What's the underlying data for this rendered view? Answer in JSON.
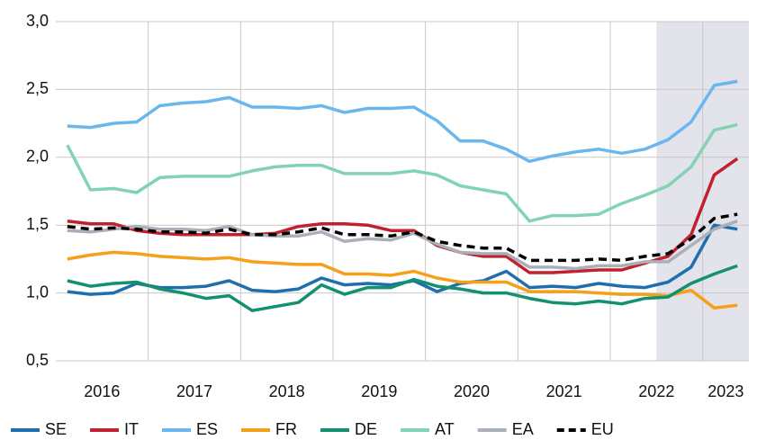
{
  "chart_data": {
    "type": "line",
    "categories": [
      "2016",
      null,
      null,
      null,
      "2017",
      null,
      null,
      null,
      "2018",
      null,
      null,
      null,
      "2019",
      null,
      null,
      null,
      "2020",
      null,
      null,
      null,
      "2021",
      null,
      null,
      null,
      "2022",
      null,
      null,
      null,
      "2023",
      null
    ],
    "ylim": [
      0.5,
      3.0
    ],
    "yticks": [
      {
        "value": 0.5,
        "label": "0,5"
      },
      {
        "value": 1.0,
        "label": "1,0"
      },
      {
        "value": 1.5,
        "label": "1,5"
      },
      {
        "value": 2.0,
        "label": "2,0"
      },
      {
        "value": 2.5,
        "label": "2,5"
      },
      {
        "value": 3.0,
        "label": "3,0"
      }
    ],
    "grid": true,
    "legend": "bottom",
    "series": [
      {
        "name": "SE",
        "color": "#1f6fae",
        "values": [
          1.01,
          0.99,
          1.0,
          1.07,
          1.04,
          1.04,
          1.05,
          1.09,
          1.02,
          1.01,
          1.03,
          1.11,
          1.06,
          1.07,
          1.06,
          1.09,
          1.01,
          1.07,
          1.09,
          1.16,
          1.04,
          1.05,
          1.04,
          1.07,
          1.05,
          1.04,
          1.08,
          1.19,
          1.5,
          1.47
        ]
      },
      {
        "name": "IT",
        "color": "#c0202f",
        "values": [
          1.53,
          1.51,
          1.51,
          1.46,
          1.44,
          1.43,
          1.43,
          1.43,
          1.43,
          1.44,
          1.49,
          1.51,
          1.51,
          1.5,
          1.46,
          1.46,
          1.35,
          1.3,
          1.27,
          1.27,
          1.15,
          1.15,
          1.16,
          1.17,
          1.17,
          1.22,
          1.27,
          1.43,
          1.87,
          1.99
        ]
      },
      {
        "name": "ES",
        "color": "#6cb6ee",
        "values": [
          2.23,
          2.22,
          2.25,
          2.26,
          2.38,
          2.4,
          2.41,
          2.44,
          2.37,
          2.37,
          2.36,
          2.38,
          2.33,
          2.36,
          2.36,
          2.37,
          2.27,
          2.12,
          2.12,
          2.06,
          1.97,
          2.01,
          2.04,
          2.06,
          2.03,
          2.06,
          2.13,
          2.26,
          2.53,
          2.56
        ]
      },
      {
        "name": "FR",
        "color": "#f5a01a",
        "values": [
          1.25,
          1.28,
          1.3,
          1.29,
          1.27,
          1.26,
          1.25,
          1.26,
          1.23,
          1.22,
          1.21,
          1.21,
          1.14,
          1.14,
          1.13,
          1.16,
          1.11,
          1.08,
          1.08,
          1.08,
          1.01,
          1.01,
          1.01,
          1.0,
          0.99,
          0.99,
          0.98,
          1.02,
          0.89,
          0.91
        ]
      },
      {
        "name": "DE",
        "color": "#13906f",
        "values": [
          1.09,
          1.05,
          1.07,
          1.08,
          1.03,
          1.0,
          0.96,
          0.98,
          0.87,
          0.9,
          0.93,
          1.06,
          0.99,
          1.04,
          1.04,
          1.1,
          1.05,
          1.03,
          1.0,
          1.0,
          0.96,
          0.93,
          0.92,
          0.94,
          0.92,
          0.96,
          0.97,
          1.07,
          1.14,
          1.2
        ]
      },
      {
        "name": "AT",
        "color": "#82d3b2",
        "values": [
          2.09,
          1.76,
          1.77,
          1.74,
          1.85,
          1.86,
          1.86,
          1.86,
          1.9,
          1.93,
          1.94,
          1.94,
          1.88,
          1.88,
          1.88,
          1.9,
          1.87,
          1.79,
          1.76,
          1.73,
          1.53,
          1.57,
          1.57,
          1.58,
          1.66,
          1.72,
          1.79,
          1.93,
          2.2,
          2.24
        ]
      },
      {
        "name": "EA",
        "color": "#a9b0b8",
        "values": [
          1.46,
          1.45,
          1.47,
          1.49,
          1.47,
          1.47,
          1.46,
          1.49,
          1.43,
          1.42,
          1.42,
          1.45,
          1.38,
          1.4,
          1.39,
          1.44,
          1.36,
          1.3,
          1.29,
          1.29,
          1.19,
          1.19,
          1.18,
          1.2,
          1.2,
          1.23,
          1.23,
          1.35,
          1.47,
          1.53
        ]
      },
      {
        "name": "EU",
        "color": "#000000",
        "dashed": true,
        "values": [
          1.49,
          1.47,
          1.48,
          1.47,
          1.45,
          1.45,
          1.44,
          1.47,
          1.43,
          1.43,
          1.45,
          1.48,
          1.43,
          1.43,
          1.42,
          1.45,
          1.38,
          1.35,
          1.33,
          1.33,
          1.24,
          1.24,
          1.24,
          1.25,
          1.24,
          1.27,
          1.29,
          1.4,
          1.55,
          1.58
        ]
      }
    ]
  }
}
